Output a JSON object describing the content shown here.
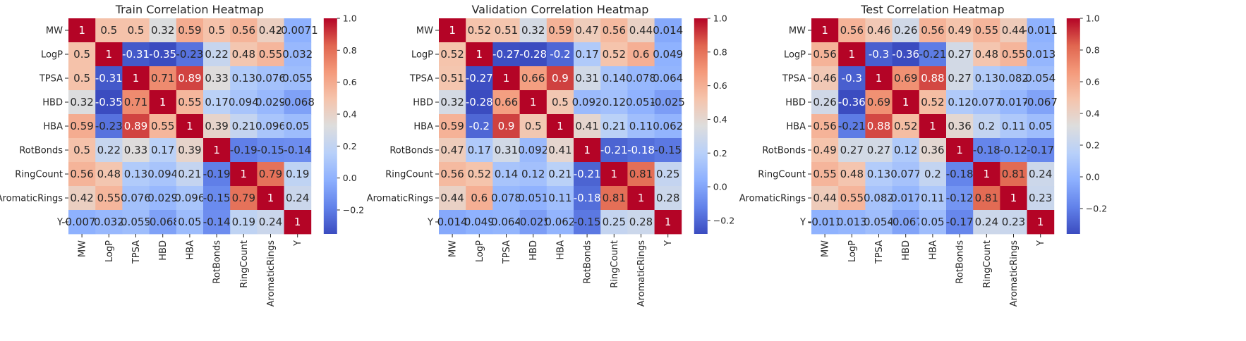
{
  "chart_data": [
    {
      "type": "heatmap",
      "title": "Train Correlation Heatmap",
      "rows": [
        "MW",
        "LogP",
        "TPSA",
        "HBD",
        "HBA",
        "RotBonds",
        "RingCount",
        "AromaticRings",
        "Y"
      ],
      "columns": [
        "MW",
        "LogP",
        "TPSA",
        "HBD",
        "HBA",
        "RotBonds",
        "RingCount",
        "AromaticRings",
        "Y"
      ],
      "cell_labels": [
        [
          "1",
          "0.5",
          "0.5",
          "0.32",
          "0.59",
          "0.5",
          "0.56",
          "0.42",
          "-0.0071"
        ],
        [
          "0.5",
          "1",
          "-0.31",
          "-0.35",
          "-0.23",
          "0.22",
          "0.48",
          "0.55",
          "0.032"
        ],
        [
          "0.5",
          "-0.31",
          "1",
          "0.71",
          "0.89",
          "0.33",
          "0.13",
          "0.076",
          "0.055"
        ],
        [
          "0.32",
          "-0.35",
          "0.71",
          "1",
          "0.55",
          "0.17",
          "0.094",
          "0.029",
          "-0.068"
        ],
        [
          "0.59",
          "-0.23",
          "0.89",
          "0.55",
          "1",
          "0.39",
          "0.21",
          "0.096",
          "0.05"
        ],
        [
          "0.5",
          "0.22",
          "0.33",
          "0.17",
          "0.39",
          "1",
          "-0.19",
          "-0.15",
          "-0.14"
        ],
        [
          "0.56",
          "0.48",
          "0.13",
          "0.094",
          "0.21",
          "-0.19",
          "1",
          "0.79",
          "0.19"
        ],
        [
          "0.42",
          "0.55",
          "0.076",
          "0.029",
          "0.096",
          "-0.15",
          "0.79",
          "1",
          "0.24"
        ],
        [
          "-0.0071",
          "0.032",
          "0.055",
          "-0.068",
          "0.05",
          "-0.14",
          "0.19",
          "0.24",
          "1"
        ]
      ],
      "colorbar": {
        "range": [
          -0.35,
          1.0
        ],
        "ticks": [
          "−0.2",
          "0.0",
          "0.2",
          "0.4",
          "0.6",
          "0.8",
          "1.0"
        ],
        "tick_values": [
          -0.2,
          0.0,
          0.2,
          0.4,
          0.6,
          0.8,
          1.0
        ]
      }
    },
    {
      "type": "heatmap",
      "title": "Validation Correlation Heatmap",
      "rows": [
        "MW",
        "LogP",
        "TPSA",
        "HBD",
        "HBA",
        "RotBonds",
        "RingCount",
        "AromaticRings",
        "Y"
      ],
      "columns": [
        "MW",
        "LogP",
        "TPSA",
        "HBD",
        "HBA",
        "RotBonds",
        "RingCount",
        "AromaticRings",
        "Y"
      ],
      "cell_labels": [
        [
          "1",
          "0.52",
          "0.51",
          "0.32",
          "0.59",
          "0.47",
          "0.56",
          "0.44",
          "0.014"
        ],
        [
          "0.52",
          "1",
          "-0.27",
          "-0.28",
          "-0.2",
          "0.17",
          "0.52",
          "0.6",
          "0.049"
        ],
        [
          "0.51",
          "-0.27",
          "1",
          "0.66",
          "0.9",
          "0.31",
          "0.14",
          "0.078",
          "0.064"
        ],
        [
          "0.32",
          "-0.28",
          "0.66",
          "1",
          "0.5",
          "0.092",
          "0.12",
          "0.051",
          "-0.025"
        ],
        [
          "0.59",
          "-0.2",
          "0.9",
          "0.5",
          "1",
          "0.41",
          "0.21",
          "0.11",
          "0.062"
        ],
        [
          "0.47",
          "0.17",
          "0.31",
          "0.092",
          "0.41",
          "1",
          "-0.21",
          "-0.18",
          "-0.15"
        ],
        [
          "0.56",
          "0.52",
          "0.14",
          "0.12",
          "0.21",
          "-0.21",
          "1",
          "0.81",
          "0.25"
        ],
        [
          "0.44",
          "0.6",
          "0.078",
          "0.051",
          "0.11",
          "-0.18",
          "0.81",
          "1",
          "0.28"
        ],
        [
          "0.014",
          "0.049",
          "0.064",
          "-0.025",
          "0.062",
          "-0.15",
          "0.25",
          "0.28",
          "1"
        ]
      ],
      "colorbar": {
        "range": [
          -0.28,
          1.0
        ],
        "ticks": [
          "−0.2",
          "0.0",
          "0.2",
          "0.4",
          "0.6",
          "0.8",
          "1.0"
        ],
        "tick_values": [
          -0.2,
          0.0,
          0.2,
          0.4,
          0.6,
          0.8,
          1.0
        ]
      }
    },
    {
      "type": "heatmap",
      "title": "Test Correlation Heatmap",
      "rows": [
        "MW",
        "LogP",
        "TPSA",
        "HBD",
        "HBA",
        "RotBonds",
        "RingCount",
        "AromaticRings",
        "Y"
      ],
      "columns": [
        "MW",
        "LogP",
        "TPSA",
        "HBD",
        "HBA",
        "RotBonds",
        "RingCount",
        "AromaticRings",
        "Y"
      ],
      "cell_labels": [
        [
          "1",
          "0.56",
          "0.46",
          "0.26",
          "0.56",
          "0.49",
          "0.55",
          "0.44",
          "-0.011"
        ],
        [
          "0.56",
          "1",
          "-0.3",
          "-0.36",
          "-0.21",
          "0.27",
          "0.48",
          "0.55",
          "0.013"
        ],
        [
          "0.46",
          "-0.3",
          "1",
          "0.69",
          "0.88",
          "0.27",
          "0.13",
          "0.082",
          "0.054"
        ],
        [
          "0.26",
          "-0.36",
          "0.69",
          "1",
          "0.52",
          "0.12",
          "0.077",
          "0.017",
          "-0.067"
        ],
        [
          "0.56",
          "-0.21",
          "0.88",
          "0.52",
          "1",
          "0.36",
          "0.2",
          "0.11",
          "0.05"
        ],
        [
          "0.49",
          "0.27",
          "0.27",
          "0.12",
          "0.36",
          "1",
          "-0.18",
          "-0.12",
          "-0.17"
        ],
        [
          "0.55",
          "0.48",
          "0.13",
          "0.077",
          "0.2",
          "-0.18",
          "1",
          "0.81",
          "0.24"
        ],
        [
          "0.44",
          "0.55",
          "0.082",
          "0.017",
          "0.11",
          "-0.12",
          "0.81",
          "1",
          "0.23"
        ],
        [
          "-0.011",
          "0.013",
          "0.054",
          "-0.067",
          "0.05",
          "-0.17",
          "0.24",
          "0.23",
          "1"
        ]
      ],
      "colorbar": {
        "range": [
          -0.36,
          1.0
        ],
        "ticks": [
          "−0.2",
          "0.0",
          "0.2",
          "0.4",
          "0.6",
          "0.8",
          "1.0"
        ],
        "tick_values": [
          -0.2,
          0.0,
          0.2,
          0.4,
          0.6,
          0.8,
          1.0
        ]
      }
    }
  ],
  "colormap": {
    "name": "coolwarm",
    "stops": [
      "#3b4cc0",
      "#6282ea",
      "#8db0fe",
      "#b8d0f9",
      "#dddddd",
      "#f5c4ac",
      "#f49a7b",
      "#e0654f",
      "#b40426"
    ]
  }
}
